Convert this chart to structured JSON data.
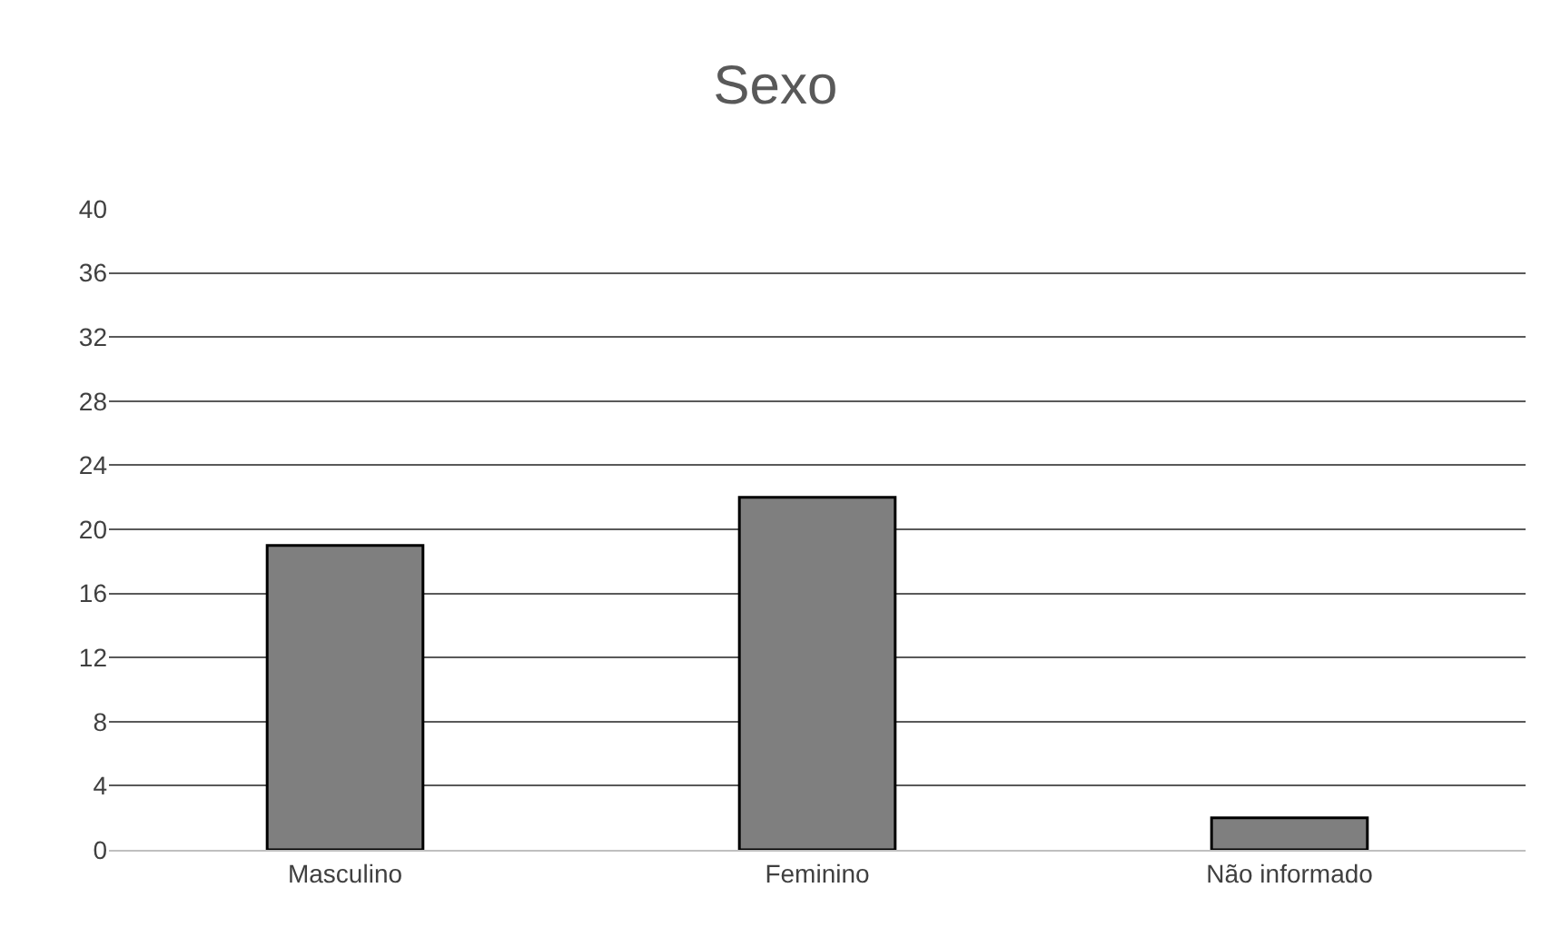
{
  "chart_data": {
    "type": "bar",
    "title": "Sexo",
    "categories": [
      "Masculino",
      "Feminino",
      "Não informado"
    ],
    "values": [
      19,
      22,
      2
    ],
    "color": "#7f7f7f",
    "ylim": [
      0,
      40
    ],
    "yticks": [
      0,
      4,
      8,
      12,
      16,
      20,
      24,
      28,
      32,
      36,
      40
    ],
    "grid": "y",
    "legend": false
  }
}
